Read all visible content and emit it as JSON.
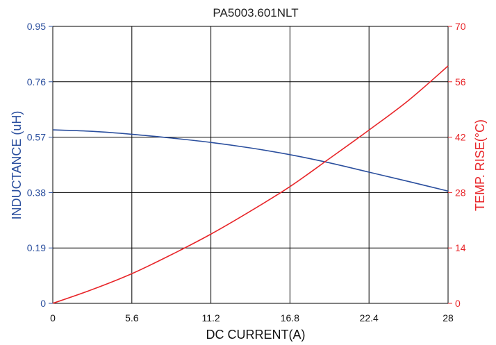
{
  "chart_data": {
    "type": "line",
    "title": "PA5003.601NLT",
    "xlabel": "DC CURRENT(A)",
    "ylabel_left": "INDUCTANCE (uH)",
    "ylabel_right": "TEMP. RISE(°C)",
    "xlim": [
      0,
      28
    ],
    "ylim_left": [
      0,
      0.95
    ],
    "ylim_right": [
      0,
      70
    ],
    "x_ticks": [
      "0",
      "5.6",
      "11.2",
      "16.8",
      "22.4",
      "28"
    ],
    "y_left_ticks": [
      "0",
      "0.19",
      "0.38",
      "0.57",
      "0.76",
      "0.95"
    ],
    "y_right_ticks": [
      "0",
      "14",
      "28",
      "42",
      "56",
      "70"
    ],
    "grid": true,
    "colors": {
      "inductance": "#2b4f9e",
      "temp": "#e8262a",
      "grid": "#000000",
      "axis_text_left": "#2b4f9e",
      "axis_text_right": "#e8262a"
    },
    "series": [
      {
        "axis": "left",
        "x": [
          0,
          2.8,
          5.6,
          8.4,
          11.2,
          14.0,
          16.8,
          19.6,
          22.4,
          25.2,
          28
        ],
        "values": [
          0.595,
          0.59,
          0.58,
          0.567,
          0.552,
          0.533,
          0.51,
          0.482,
          0.45,
          0.418,
          0.385
        ]
      },
      {
        "axis": "right",
        "x": [
          0,
          2.8,
          5.6,
          8.4,
          11.2,
          14.0,
          16.8,
          19.6,
          22.4,
          25.2,
          28
        ],
        "values": [
          0,
          3.5,
          7.5,
          12.3,
          17.5,
          23.3,
          29.5,
          36.6,
          43.8,
          51.3,
          60
        ]
      }
    ]
  }
}
